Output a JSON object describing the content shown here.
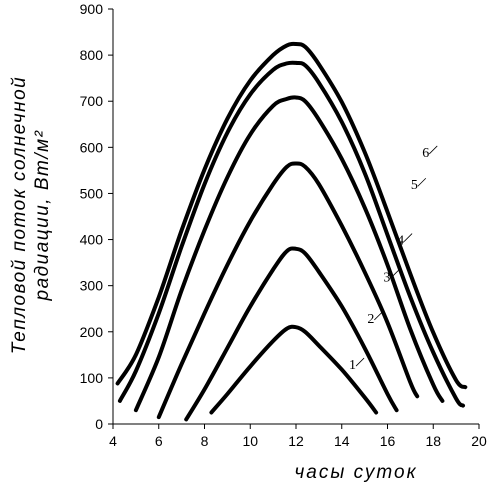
{
  "chart_data": {
    "type": "line",
    "title": "",
    "xlabel": "часы суток",
    "ylabel_line1": "Тепловой поток солнечной",
    "ylabel_line2": "радиации, Вт/м²",
    "xlim": [
      4,
      20
    ],
    "ylim": [
      0,
      900
    ],
    "xticks": [
      4,
      6,
      8,
      10,
      12,
      14,
      16,
      18,
      20
    ],
    "yticks": [
      0,
      100,
      200,
      300,
      400,
      500,
      600,
      700,
      800,
      900
    ],
    "grid": false,
    "line_color": "#000000",
    "series": [
      {
        "label": "1",
        "label_at": [
          14.8,
          130
        ],
        "points": [
          [
            8.3,
            25
          ],
          [
            9.0,
            65
          ],
          [
            10.0,
            125
          ],
          [
            11.0,
            180
          ],
          [
            11.6,
            207
          ],
          [
            12.0,
            210
          ],
          [
            12.4,
            200
          ],
          [
            13.0,
            170
          ],
          [
            14.0,
            118
          ],
          [
            15.0,
            58
          ],
          [
            15.5,
            25
          ]
        ]
      },
      {
        "label": "2",
        "label_at": [
          15.6,
          230
        ],
        "points": [
          [
            7.2,
            10
          ],
          [
            8.0,
            75
          ],
          [
            9.0,
            165
          ],
          [
            10.0,
            255
          ],
          [
            11.0,
            335
          ],
          [
            11.6,
            375
          ],
          [
            12.0,
            380
          ],
          [
            12.4,
            370
          ],
          [
            13.0,
            330
          ],
          [
            14.0,
            255
          ],
          [
            15.0,
            165
          ],
          [
            16.0,
            65
          ],
          [
            16.4,
            30
          ]
        ]
      },
      {
        "label": "3",
        "label_at": [
          16.3,
          320
        ],
        "points": [
          [
            6.0,
            15
          ],
          [
            7.0,
            130
          ],
          [
            8.0,
            240
          ],
          [
            9.0,
            345
          ],
          [
            10.0,
            440
          ],
          [
            11.0,
            520
          ],
          [
            11.6,
            558
          ],
          [
            12.0,
            565
          ],
          [
            12.4,
            558
          ],
          [
            13.0,
            520
          ],
          [
            14.0,
            430
          ],
          [
            15.0,
            330
          ],
          [
            16.0,
            220
          ],
          [
            17.0,
            90
          ],
          [
            17.3,
            60
          ]
        ]
      },
      {
        "label": "4",
        "label_at": [
          16.9,
          400
        ],
        "points": [
          [
            5.0,
            30
          ],
          [
            6.0,
            145
          ],
          [
            7.0,
            290
          ],
          [
            8.0,
            420
          ],
          [
            9.0,
            535
          ],
          [
            10.0,
            628
          ],
          [
            11.0,
            690
          ],
          [
            11.6,
            705
          ],
          [
            12.0,
            708
          ],
          [
            12.4,
            700
          ],
          [
            13.0,
            660
          ],
          [
            14.0,
            575
          ],
          [
            15.0,
            470
          ],
          [
            16.0,
            345
          ],
          [
            17.0,
            205
          ],
          [
            18.0,
            85
          ],
          [
            18.4,
            50
          ]
        ]
      },
      {
        "label": "5",
        "label_at": [
          17.5,
          520
        ],
        "points": [
          [
            4.3,
            50
          ],
          [
            5.0,
            115
          ],
          [
            6.0,
            240
          ],
          [
            7.0,
            385
          ],
          [
            8.0,
            520
          ],
          [
            9.0,
            632
          ],
          [
            10.0,
            715
          ],
          [
            11.0,
            768
          ],
          [
            11.6,
            782
          ],
          [
            12.0,
            783
          ],
          [
            12.4,
            778
          ],
          [
            13.0,
            740
          ],
          [
            14.0,
            655
          ],
          [
            15.0,
            545
          ],
          [
            16.0,
            410
          ],
          [
            17.0,
            275
          ],
          [
            18.0,
            155
          ],
          [
            19.0,
            55
          ],
          [
            19.3,
            40
          ]
        ]
      },
      {
        "label": "6",
        "label_at": [
          18.0,
          590
        ],
        "points": [
          [
            4.2,
            88
          ],
          [
            5.0,
            150
          ],
          [
            6.0,
            275
          ],
          [
            7.0,
            420
          ],
          [
            8.0,
            552
          ],
          [
            9.0,
            662
          ],
          [
            10.0,
            745
          ],
          [
            11.0,
            800
          ],
          [
            11.6,
            821
          ],
          [
            12.0,
            824
          ],
          [
            12.4,
            818
          ],
          [
            13.0,
            780
          ],
          [
            14.0,
            698
          ],
          [
            15.0,
            590
          ],
          [
            16.0,
            460
          ],
          [
            17.0,
            325
          ],
          [
            18.0,
            198
          ],
          [
            19.0,
            95
          ],
          [
            19.4,
            80
          ]
        ]
      }
    ]
  }
}
